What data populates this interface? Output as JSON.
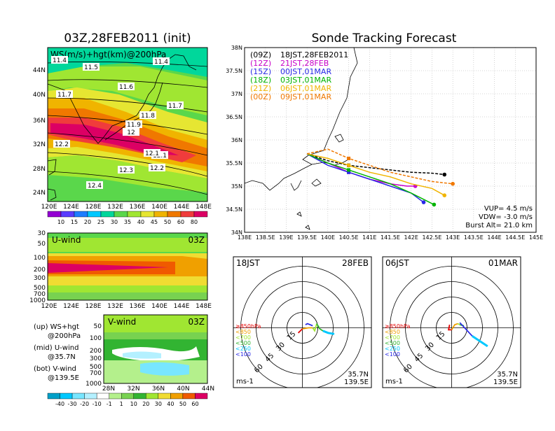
{
  "left_title": "03Z,28FEB2011 (init)",
  "right_title": "Sonde Tracking Forecast",
  "colors": {
    "wind_scale": [
      "#9400d3",
      "#5a3cff",
      "#1e7dff",
      "#00c8ff",
      "#00d79b",
      "#5ad74b",
      "#a0e632",
      "#e6e632",
      "#f0b400",
      "#f07800",
      "#f03c3c",
      "#dc0064"
    ],
    "uv_scale": [
      "#00a0c8",
      "#00c8ff",
      "#78e6ff",
      "#b4f0ff",
      "#ffffff",
      "#b4f08c",
      "#78d250",
      "#32b432",
      "#a0e632",
      "#f0dc32",
      "#f0a000",
      "#f05a00",
      "#dc0064"
    ]
  },
  "map_panel": {
    "title": "WS(m/s)+hgt(km)@200hPa",
    "lat_labels": [
      "24N",
      "28N",
      "32N",
      "36N",
      "40N",
      "44N"
    ],
    "lon_labels": [
      "120E",
      "124E",
      "128E",
      "132E",
      "136E",
      "140E",
      "144E",
      "148E"
    ],
    "contour_labels": [
      "11.4",
      "11.5",
      "11.4",
      "11.6",
      "11.7",
      "11.7",
      "11.8",
      "11.9",
      "12",
      "12.1",
      "12.2",
      "12.1",
      "12.2",
      "12.3",
      "12.4"
    ],
    "colorbar_labels": [
      "10",
      "15",
      "20",
      "25",
      "30",
      "35",
      "40",
      "45",
      "50",
      "60",
      "80"
    ]
  },
  "u_panel": {
    "title": "U-wind",
    "time": "03Z",
    "p_labels": [
      "30",
      "50",
      "100",
      "200",
      "300",
      "500",
      "700",
      "1000"
    ],
    "lon_labels": [
      "120E",
      "124E",
      "128E",
      "132E",
      "136E",
      "140E",
      "144E",
      "148E"
    ]
  },
  "v_panel": {
    "title": "V-wind",
    "time": "03Z",
    "p_labels": [
      "50",
      "100",
      "200",
      "300",
      "500",
      "700",
      "1000"
    ],
    "lat_labels": [
      "28N",
      "32N",
      "36N",
      "40N",
      "44N"
    ],
    "colorbar_labels": [
      "-40",
      "-30",
      "-20",
      "-10",
      "-1",
      "1",
      "10",
      "20",
      "30",
      "40",
      "50",
      "60"
    ]
  },
  "legend_notes": [
    {
      "line1": "(up) WS+hgt",
      "line2": "@200hPa"
    },
    {
      "line1": "(mid) U-wind",
      "line2": "@35.7N"
    },
    {
      "line1": "(bot) V-wind",
      "line2": "@139.5E"
    }
  ],
  "track_panel": {
    "lat_labels": [
      "34N",
      "34.5N",
      "35N",
      "35.5N",
      "36N",
      "36.5N",
      "37N",
      "37.5N",
      "38N"
    ],
    "lon_labels": [
      "138E",
      "138.5E",
      "139E",
      "139.5E",
      "140E",
      "140.5E",
      "141E",
      "141.5E",
      "142E",
      "142.5E",
      "143E",
      "143.5E",
      "144E",
      "144.5E",
      "145E"
    ],
    "legend": [
      {
        "code": "(09Z)",
        "time": "18JST,28FEB2011",
        "color": "#000000"
      },
      {
        "code": "(12Z)",
        "time": "21JST,28FEB",
        "color": "#c800c8"
      },
      {
        "code": "(15Z)",
        "time": "00JST,01MAR",
        "color": "#2828e6"
      },
      {
        "code": "(18Z)",
        "time": "03JST,01MAR",
        "color": "#00b400"
      },
      {
        "code": "(21Z)",
        "time": "06JST,01MAR",
        "color": "#f0b400"
      },
      {
        "code": "(00Z)",
        "time": "09JST,01MAR",
        "color": "#f07800"
      }
    ],
    "params": [
      "VUP= 4.5 m/s",
      "VDW= -3.0 m/s",
      "Burst Alt= 21.0 km"
    ]
  },
  "hodographs": [
    {
      "left": "18JST",
      "right": "28FEB",
      "ring_labels": [
        "15",
        "30",
        "45",
        "60"
      ],
      "levels": [
        {
          "label": "≥850hPa",
          "color": "#e60000"
        },
        {
          "label": "<850",
          "color": "#f0a000"
        },
        {
          "label": "<700",
          "color": "#a0e632"
        },
        {
          "label": "<500",
          "color": "#32b432"
        },
        {
          "label": "<250",
          "color": "#00c8ff"
        },
        {
          "label": "<100",
          "color": "#2828e6"
        }
      ],
      "unit": "ms-1",
      "loc1": "35.7N",
      "loc2": "139.5E"
    },
    {
      "left": "06JST",
      "right": "01MAR",
      "ring_labels": [
        "15",
        "30",
        "45",
        "60"
      ],
      "levels": [
        {
          "label": "≥850hPa",
          "color": "#e60000"
        },
        {
          "label": "<850",
          "color": "#f0a000"
        },
        {
          "label": "<700",
          "color": "#a0e632"
        },
        {
          "label": "<500",
          "color": "#32b432"
        },
        {
          "label": "<250",
          "color": "#00c8ff"
        },
        {
          "label": "<100",
          "color": "#2828e6"
        }
      ],
      "unit": "ms-1",
      "loc1": "35.7N",
      "loc2": "139.5E"
    }
  ],
  "chart_data": [
    {
      "type": "heatmap",
      "title": "WS(m/s)+hgt(km)@200hPa",
      "xlabel": "",
      "ylabel": "",
      "xlim": [
        120,
        149
      ],
      "ylim": [
        22,
        47
      ],
      "grid": false
    },
    {
      "type": "heatmap",
      "title": "U-wind",
      "xlim": [
        120,
        149
      ],
      "ylim": [
        1000,
        30
      ]
    },
    {
      "type": "heatmap",
      "title": "V-wind",
      "xlim": [
        28,
        44
      ],
      "ylim": [
        1000,
        50
      ]
    },
    {
      "type": "line",
      "title": "Sonde Tracking Forecast",
      "xlim": [
        138,
        145
      ],
      "ylim": [
        34,
        38
      ],
      "grid": true,
      "series": [
        {
          "name": "18JST,28FEB2011",
          "x": [
            139.5,
            140.0,
            140.5,
            141.0,
            141.5,
            142.0,
            142.5,
            142.8
          ],
          "y": [
            35.7,
            35.55,
            35.45,
            35.4,
            35.35,
            35.3,
            35.28,
            35.25
          ]
        },
        {
          "name": "21JST,28FEB",
          "x": [
            139.5,
            140.0,
            140.5,
            141.0,
            141.5,
            141.9,
            142.1
          ],
          "y": [
            35.7,
            35.5,
            35.3,
            35.15,
            35.05,
            35.0,
            35.0
          ]
        },
        {
          "name": "00JST,01MAR",
          "x": [
            139.5,
            140.0,
            140.5,
            141.0,
            141.5,
            142.0,
            142.3
          ],
          "y": [
            35.7,
            35.45,
            35.3,
            35.15,
            35.0,
            34.85,
            34.65
          ]
        },
        {
          "name": "03JST,01MAR",
          "x": [
            139.5,
            140.0,
            140.5,
            141.0,
            141.5,
            142.0,
            142.55
          ],
          "y": [
            35.7,
            35.5,
            35.35,
            35.2,
            35.05,
            34.85,
            34.6
          ]
        },
        {
          "name": "06JST,01MAR",
          "x": [
            139.5,
            140.0,
            140.5,
            141.0,
            141.5,
            142.0,
            142.5,
            142.8
          ],
          "y": [
            35.7,
            35.6,
            35.45,
            35.3,
            35.2,
            35.05,
            34.95,
            34.8
          ]
        },
        {
          "name": "09JST,01MAR",
          "x": [
            139.5,
            140.0,
            140.5,
            141.0,
            141.5,
            142.0,
            142.5,
            143.0
          ],
          "y": [
            35.7,
            35.8,
            35.6,
            35.45,
            35.3,
            35.2,
            35.1,
            35.05
          ]
        }
      ]
    },
    {
      "type": "line",
      "title": "18JST 28FEB hodograph",
      "series": [
        {
          "name": "≥850hPa",
          "u": [
            -4,
            -2,
            0
          ],
          "v": [
            -5,
            -3,
            -1
          ]
        },
        {
          "name": "<850",
          "u": [
            0,
            6,
            10
          ],
          "v": [
            -1,
            0,
            0
          ]
        },
        {
          "name": "<700",
          "u": [
            10,
            12,
            14
          ],
          "v": [
            0,
            -3,
            4
          ]
        },
        {
          "name": "<500",
          "u": [
            14,
            17,
            20
          ],
          "v": [
            4,
            -1,
            -3
          ]
        },
        {
          "name": "<250",
          "u": [
            20,
            25,
            31
          ],
          "v": [
            -3,
            -5,
            -6
          ]
        },
        {
          "name": "<100",
          "u": [
            10,
            5,
            3
          ],
          "v": [
            2,
            4,
            3
          ]
        }
      ]
    },
    {
      "type": "line",
      "title": "06JST 01MAR hodograph",
      "series": [
        {
          "name": "≥850hPa",
          "u": [
            -2,
            -3,
            0
          ],
          "v": [
            3,
            -2,
            -2
          ]
        },
        {
          "name": "<850",
          "u": [
            0,
            3,
            6
          ],
          "v": [
            -2,
            3,
            4
          ]
        },
        {
          "name": "<700",
          "u": [
            6,
            8
          ],
          "v": [
            4,
            3
          ]
        },
        {
          "name": "<500",
          "u": [
            8,
            12
          ],
          "v": [
            3,
            2
          ]
        },
        {
          "name": "<250",
          "u": [
            20,
            35
          ],
          "v": [
            -8,
            -18
          ]
        },
        {
          "name": "<100",
          "u": [
            8,
            20
          ],
          "v": [
            5,
            -8
          ]
        }
      ]
    }
  ]
}
